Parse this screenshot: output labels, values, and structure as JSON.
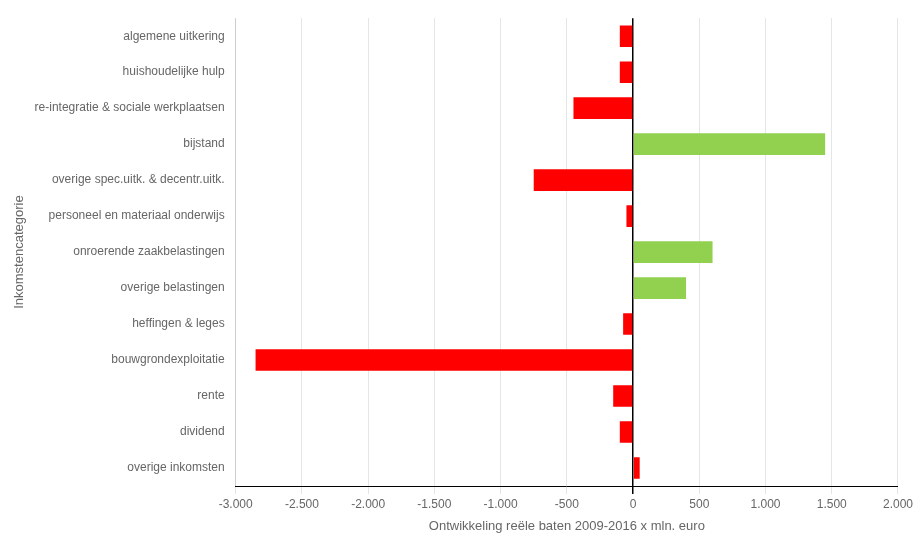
{
  "chart_data": {
    "type": "bar",
    "orientation": "horizontal",
    "categories": [
      "overige inkomsten",
      "dividend",
      "rente",
      "bouwgrondexploitatie",
      "heffingen & leges",
      "overige belastingen",
      "onroerende zaakbelastingen",
      "personeel en materiaal onderwijs",
      "overige spec.uitk. & decentr.uitk.",
      "bijstand",
      "re-integratie & sociale werkplaatsen",
      "huishoudelijke hulp",
      "algemene uitkering"
    ],
    "values": [
      50,
      -100,
      -150,
      -2850,
      -75,
      400,
      600,
      -50,
      -750,
      1450,
      -450,
      -100,
      -100
    ],
    "colors": [
      "#FF0000",
      "#FF0000",
      "#FF0000",
      "#FF0000",
      "#FF0000",
      "#92D050",
      "#92D050",
      "#FF0000",
      "#FF0000",
      "#92D050",
      "#FF0000",
      "#FF0000",
      "#FF0000"
    ],
    "xlabel": "Ontwikkeling reële baten 2009-2016 x mln. euro",
    "ylabel": "Inkomstencategorie",
    "xlim": [
      -3000,
      2000
    ],
    "xticks": [
      {
        "value": -3000,
        "label": "-3.000"
      },
      {
        "value": -2500,
        "label": "-2.500"
      },
      {
        "value": -2000,
        "label": "-2.000"
      },
      {
        "value": -1500,
        "label": "-1.500"
      },
      {
        "value": -1000,
        "label": "-1.000"
      },
      -500,
      0,
      500,
      {
        "value": 1000,
        "label": "1.000"
      },
      {
        "value": 1500,
        "label": "1.500"
      },
      {
        "value": 2000,
        "label": "2.000"
      }
    ],
    "grid": true
  }
}
